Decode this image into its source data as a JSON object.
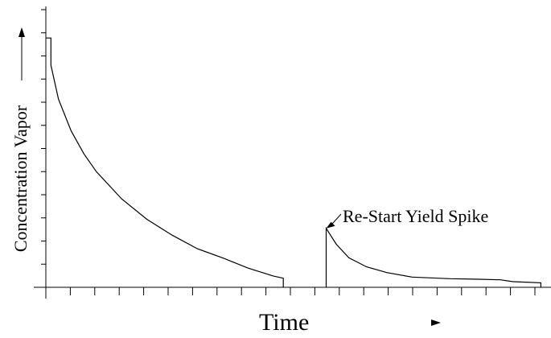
{
  "chart_data": {
    "type": "line",
    "title": "",
    "xlabel": "Time",
    "ylabel": "Concentration Vapor",
    "x_ticks_count": 20,
    "y_ticks_count": 12,
    "xlim": [
      0,
      20
    ],
    "ylim": [
      0,
      12
    ],
    "grid": false,
    "legend": "none",
    "series": [
      {
        "values": [
          [
            0.0,
            11.0
          ],
          [
            0.2,
            11.0
          ],
          [
            0.2,
            9.8
          ],
          [
            0.5,
            8.3
          ],
          [
            1.0,
            6.9
          ],
          [
            1.5,
            5.9
          ],
          [
            2.0,
            5.1
          ],
          [
            3.0,
            3.9
          ],
          [
            4.0,
            3.0
          ],
          [
            5.0,
            2.3
          ],
          [
            6.0,
            1.7
          ],
          [
            7.0,
            1.3
          ],
          [
            8.0,
            0.85
          ],
          [
            9.0,
            0.5
          ],
          [
            9.4,
            0.4
          ],
          [
            9.4,
            0.0
          ]
        ]
      },
      {
        "values": [
          [
            11.1,
            0.0
          ],
          [
            11.1,
            2.6
          ],
          [
            11.5,
            1.9
          ],
          [
            12.0,
            1.3
          ],
          [
            12.7,
            0.9
          ],
          [
            13.5,
            0.65
          ],
          [
            14.5,
            0.45
          ],
          [
            16.0,
            0.38
          ],
          [
            17.0,
            0.36
          ],
          [
            18.0,
            0.33
          ],
          [
            18.5,
            0.25
          ],
          [
            19.6,
            0.2
          ],
          [
            19.6,
            0.0
          ]
        ]
      }
    ],
    "annotations": [
      {
        "text": "Re-Start Yield Spike",
        "x": 11.1,
        "y": 2.6
      }
    ]
  }
}
